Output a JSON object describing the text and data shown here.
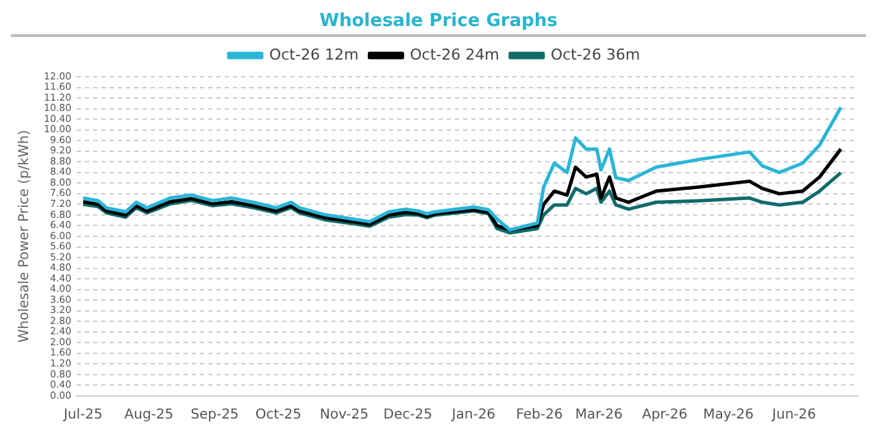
{
  "chart_data": {
    "type": "line",
    "title": "Wholesale Price Graphs",
    "ylabel": "Wholesale Power Price (p/kWh)",
    "x": [
      "2025-07-01",
      "2025-07-08",
      "2025-07-12",
      "2025-07-21",
      "2025-07-26",
      "2025-07-31",
      "2025-08-11",
      "2025-08-21",
      "2025-08-31",
      "2025-09-09",
      "2025-09-19",
      "2025-09-30",
      "2025-10-07",
      "2025-10-11",
      "2025-10-23",
      "2025-11-05",
      "2025-11-13",
      "2025-11-22",
      "2025-11-30",
      "2025-12-06",
      "2025-12-10",
      "2025-12-14",
      "2026-01-01",
      "2026-01-08",
      "2026-01-12",
      "2026-01-18",
      "2026-01-31",
      "2026-02-03",
      "2026-02-08",
      "2026-02-14",
      "2026-02-18",
      "2026-02-23",
      "2026-02-28",
      "2026-03-02",
      "2026-03-06",
      "2026-03-09",
      "2026-03-15",
      "2026-03-28",
      "2026-04-18",
      "2026-05-11",
      "2026-05-17",
      "2026-05-25",
      "2026-06-05",
      "2026-06-13",
      "2026-06-23"
    ],
    "series": [
      {
        "name": "Oct-26 12m",
        "color": "#29b6d8",
        "values": [
          7.44,
          7.34,
          7.07,
          6.92,
          7.28,
          7.07,
          7.44,
          7.55,
          7.34,
          7.44,
          7.28,
          7.07,
          7.28,
          7.07,
          6.81,
          6.65,
          6.55,
          6.92,
          7.02,
          6.95,
          6.85,
          6.92,
          7.1,
          7.0,
          6.65,
          6.24,
          6.5,
          7.86,
          8.75,
          8.4,
          9.7,
          9.28,
          9.28,
          8.5,
          9.28,
          8.2,
          8.1,
          8.6,
          8.9,
          9.17,
          8.65,
          8.4,
          8.75,
          9.43,
          10.85
        ]
      },
      {
        "name": "Oct-26 24m",
        "color": "#000000",
        "values": [
          7.3,
          7.2,
          6.95,
          6.8,
          7.15,
          6.95,
          7.3,
          7.42,
          7.22,
          7.3,
          7.15,
          6.95,
          7.15,
          6.95,
          6.7,
          6.55,
          6.45,
          6.8,
          6.9,
          6.85,
          6.75,
          6.85,
          7.0,
          6.9,
          6.4,
          6.24,
          6.4,
          7.2,
          7.7,
          7.55,
          8.6,
          8.23,
          8.33,
          7.44,
          8.23,
          7.44,
          7.28,
          7.7,
          7.86,
          8.07,
          7.8,
          7.6,
          7.7,
          8.23,
          9.28
        ]
      },
      {
        "name": "Oct-26 36m",
        "color": "#0f6b6b",
        "values": [
          7.2,
          7.12,
          6.88,
          6.72,
          7.08,
          6.88,
          7.22,
          7.35,
          7.15,
          7.22,
          7.08,
          6.88,
          7.08,
          6.88,
          6.62,
          6.48,
          6.38,
          6.72,
          6.82,
          6.8,
          6.7,
          6.8,
          6.95,
          6.85,
          6.29,
          6.13,
          6.29,
          6.81,
          7.18,
          7.18,
          7.8,
          7.6,
          7.8,
          7.28,
          7.7,
          7.18,
          7.02,
          7.28,
          7.34,
          7.44,
          7.28,
          7.18,
          7.28,
          7.7,
          8.39
        ]
      }
    ],
    "xlim": [
      "2025-06-28",
      "2026-07-01"
    ],
    "xticks": [
      {
        "value": "2025-07-01",
        "label": "Jul-25"
      },
      {
        "value": "2025-08-01",
        "label": "Aug-25"
      },
      {
        "value": "2025-09-01",
        "label": "Sep-25"
      },
      {
        "value": "2025-10-01",
        "label": "Oct-25"
      },
      {
        "value": "2025-11-01",
        "label": "Nov-25"
      },
      {
        "value": "2025-12-01",
        "label": "Dec-25"
      },
      {
        "value": "2026-01-01",
        "label": "Jan-26"
      },
      {
        "value": "2026-02-01",
        "label": "Feb-26"
      },
      {
        "value": "2026-03-01",
        "label": "Mar-26"
      },
      {
        "value": "2026-04-01",
        "label": "Apr-26"
      },
      {
        "value": "2026-05-01",
        "label": "May-26"
      },
      {
        "value": "2026-06-01",
        "label": "Jun-26"
      }
    ],
    "ylim": [
      0,
      12
    ],
    "yticks": [
      {
        "value": 0,
        "label": "0.00"
      },
      {
        "value": 0.4,
        "label": "0.40"
      },
      {
        "value": 0.8,
        "label": "0.80"
      },
      {
        "value": 1.2,
        "label": "1.20"
      },
      {
        "value": 1.6,
        "label": "1.60"
      },
      {
        "value": 2,
        "label": "2.00"
      },
      {
        "value": 2.4,
        "label": "2.40"
      },
      {
        "value": 2.8,
        "label": "2.80"
      },
      {
        "value": 3.2,
        "label": "3.20"
      },
      {
        "value": 3.6,
        "label": "3.60"
      },
      {
        "value": 4,
        "label": "4.00"
      },
      {
        "value": 4.4,
        "label": "4.40"
      },
      {
        "value": 4.8,
        "label": "4.80"
      },
      {
        "value": 5.2,
        "label": "5.20"
      },
      {
        "value": 5.6,
        "label": "5.60"
      },
      {
        "value": 6,
        "label": "6.00"
      },
      {
        "value": 6.4,
        "label": "6.40"
      },
      {
        "value": 6.8,
        "label": "6.80"
      },
      {
        "value": 7.2,
        "label": "7.20"
      },
      {
        "value": 7.6,
        "label": "7.60"
      },
      {
        "value": 8,
        "label": "8.00"
      },
      {
        "value": 8.4,
        "label": "8.40"
      },
      {
        "value": 8.8,
        "label": "8.80"
      },
      {
        "value": 9.2,
        "label": "9.20"
      },
      {
        "value": 9.6,
        "label": "9.60"
      },
      {
        "value": 10,
        "label": "10.00"
      },
      {
        "value": 10.4,
        "label": "10.40"
      },
      {
        "value": 10.8,
        "label": "10.80"
      },
      {
        "value": 11.2,
        "label": "11.20"
      },
      {
        "value": 11.6,
        "label": "11.60"
      },
      {
        "value": 12,
        "label": "12.00"
      }
    ],
    "grid": "y",
    "legend": "top",
    "marker": "none",
    "line_style": "solid"
  }
}
